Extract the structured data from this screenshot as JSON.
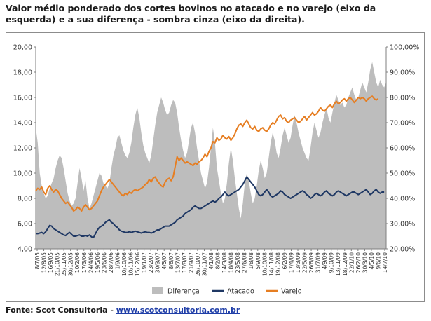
{
  "title": "Valor médio ponderado dos cortes bovinos no atacado e no varejo (eixo da esquerda) e a sua diferença - sombra cinza (eixo da direita).",
  "source": {
    "prefix": "Fonte: Scot Consultoria - ",
    "link_text": "www.scotconsultoria.com.br"
  },
  "chart_data": {
    "type": "line",
    "y_left": {
      "min": 4,
      "max": 20,
      "step": 2,
      "tick_labels": [
        "4,00",
        "6,00",
        "8,00",
        "10,00",
        "12,00",
        "14,00",
        "16,00",
        "18,00",
        "20,00"
      ]
    },
    "y_right": {
      "min": 20,
      "max": 100,
      "step": 10,
      "tick_labels": [
        "20,00%",
        "30,00%",
        "40,00%",
        "50,00%",
        "60,00%",
        "70,00%",
        "80,00%",
        "90,00%",
        "100,00%"
      ]
    },
    "x_tick_labels": [
      "8/7/05",
      "12/8/05",
      "16/9/05",
      "21/10/05",
      "25/11/05",
      "30/12/05",
      "10/2/06",
      "17/3/06",
      "24/4/06",
      "19/5/06",
      "23/6/06",
      "28/7/06",
      "1/9/06",
      "10/10/06",
      "10/11/06",
      "15/12/06",
      "19/1/07",
      "23/2/07",
      "30/3/07",
      "4/5/07",
      "8/6/07",
      "13/7/07",
      "17/8/07",
      "21/9/07",
      "26/10/07",
      "30/11/07",
      "4/1/08",
      "8/2/08",
      "14/3/08",
      "18/4/08",
      "23/5/08",
      "27/6/08",
      "1/8/08",
      "5/9/08",
      "10/10/08",
      "14/11/08",
      "19/12/08",
      "6/2/09",
      "17/4/09",
      "13/3/09",
      "22/5/09",
      "26/6/09",
      "31/7/09",
      "4/9/09",
      "9/10/09",
      "13/11/09",
      "18/12/09",
      "22/1/10",
      "26/2/10",
      "30/3/10",
      "4/5/10",
      "9/6/10",
      "14/7/10"
    ],
    "legend": {
      "position": "bottom-center"
    },
    "grid": false,
    "colors": {
      "diferenca": "#bdbdbd",
      "atacado": "#1f3864",
      "varejo": "#e67e22"
    },
    "series": [
      {
        "name": "Diferença",
        "axis": "right",
        "kind": "area",
        "values": [
          68,
          62,
          50,
          45,
          42,
          40,
          41,
          44,
          46,
          48,
          52,
          55,
          57,
          56,
          52,
          47,
          42,
          39,
          37,
          38,
          40,
          46,
          52,
          48,
          43,
          47,
          40,
          36,
          38,
          41,
          44,
          47,
          50,
          49,
          46,
          45,
          44,
          46,
          52,
          57,
          60,
          64,
          65,
          62,
          59,
          57,
          56,
          58,
          62,
          68,
          73,
          76,
          72,
          66,
          61,
          58,
          56,
          54,
          57,
          63,
          69,
          74,
          77,
          80,
          78,
          75,
          73,
          74,
          77,
          79,
          78,
          74,
          68,
          63,
          59,
          56,
          58,
          63,
          68,
          70,
          66,
          60,
          55,
          50,
          47,
          44,
          46,
          52,
          60,
          68,
          62,
          52,
          47,
          42,
          38,
          40,
          46,
          54,
          60,
          55,
          48,
          42,
          36,
          32,
          38,
          46,
          50,
          47,
          42,
          38,
          40,
          45,
          51,
          55,
          52,
          48,
          50,
          56,
          62,
          66,
          63,
          58,
          56,
          60,
          65,
          68,
          65,
          62,
          64,
          69,
          73,
          70,
          66,
          63,
          60,
          58,
          56,
          55,
          60,
          66,
          70,
          67,
          64,
          66,
          70,
          73,
          76,
          72,
          70,
          74,
          78,
          81,
          79,
          77,
          78,
          76,
          77,
          80,
          82,
          84,
          81,
          79,
          80,
          83,
          86,
          84,
          82,
          86,
          91,
          94,
          90,
          86,
          84,
          87,
          85,
          84,
          86
        ]
      },
      {
        "name": "Atacado",
        "axis": "left",
        "values": [
          5.2,
          5.2,
          5.25,
          5.3,
          5.2,
          5.35,
          5.6,
          5.85,
          5.8,
          5.6,
          5.5,
          5.4,
          5.3,
          5.2,
          5.1,
          5.05,
          5.2,
          5.3,
          5.15,
          5.0,
          5.0,
          5.05,
          5.1,
          5.0,
          5.0,
          5.05,
          5.0,
          5.1,
          4.95,
          4.9,
          5.2,
          5.5,
          5.7,
          5.8,
          5.9,
          6.1,
          6.2,
          6.3,
          6.1,
          6.0,
          5.8,
          5.7,
          5.5,
          5.4,
          5.35,
          5.3,
          5.3,
          5.35,
          5.3,
          5.35,
          5.4,
          5.35,
          5.3,
          5.25,
          5.3,
          5.35,
          5.3,
          5.3,
          5.25,
          5.3,
          5.4,
          5.5,
          5.5,
          5.6,
          5.7,
          5.8,
          5.8,
          5.8,
          5.9,
          6.0,
          6.1,
          6.3,
          6.4,
          6.5,
          6.6,
          6.8,
          6.9,
          7.0,
          7.1,
          7.3,
          7.4,
          7.3,
          7.2,
          7.2,
          7.3,
          7.4,
          7.5,
          7.6,
          7.7,
          7.8,
          7.7,
          7.8,
          8.0,
          8.1,
          8.3,
          8.5,
          8.3,
          8.2,
          8.3,
          8.4,
          8.5,
          8.6,
          8.7,
          8.9,
          9.1,
          9.4,
          9.7,
          9.5,
          9.3,
          9.1,
          8.9,
          8.6,
          8.3,
          8.2,
          8.3,
          8.5,
          8.7,
          8.5,
          8.2,
          8.1,
          8.2,
          8.3,
          8.4,
          8.6,
          8.5,
          8.3,
          8.2,
          8.1,
          8.0,
          8.1,
          8.2,
          8.3,
          8.4,
          8.5,
          8.6,
          8.5,
          8.3,
          8.2,
          8.0,
          8.1,
          8.3,
          8.4,
          8.3,
          8.2,
          8.3,
          8.5,
          8.6,
          8.4,
          8.3,
          8.2,
          8.3,
          8.5,
          8.6,
          8.5,
          8.4,
          8.3,
          8.2,
          8.3,
          8.4,
          8.5,
          8.5,
          8.4,
          8.3,
          8.4,
          8.5,
          8.6,
          8.7,
          8.5,
          8.3,
          8.4,
          8.6,
          8.7,
          8.5,
          8.4,
          8.5,
          8.5
        ]
      },
      {
        "name": "Varejo",
        "axis": "left",
        "values": [
          8.6,
          8.8,
          8.7,
          8.9,
          8.5,
          8.3,
          8.8,
          9.0,
          8.7,
          8.5,
          8.7,
          8.6,
          8.3,
          8.0,
          7.8,
          7.6,
          7.7,
          7.5,
          7.3,
          7.0,
          7.1,
          7.3,
          7.2,
          7.0,
          7.3,
          7.5,
          7.3,
          7.1,
          7.2,
          7.4,
          7.6,
          7.8,
          8.2,
          8.6,
          8.9,
          9.1,
          9.3,
          9.5,
          9.3,
          9.1,
          8.9,
          8.7,
          8.5,
          8.3,
          8.2,
          8.4,
          8.3,
          8.5,
          8.4,
          8.6,
          8.7,
          8.6,
          8.7,
          8.8,
          8.9,
          9.1,
          9.2,
          9.5,
          9.3,
          9.6,
          9.7,
          9.4,
          9.2,
          9.0,
          8.9,
          9.3,
          9.5,
          9.6,
          9.4,
          9.7,
          10.5,
          11.3,
          11.0,
          11.2,
          11.0,
          10.8,
          10.9,
          10.8,
          10.7,
          10.6,
          10.8,
          10.7,
          10.9,
          11.0,
          11.2,
          11.5,
          11.3,
          11.7,
          12.0,
          12.5,
          12.4,
          12.8,
          12.6,
          12.7,
          13.0,
          12.8,
          12.7,
          12.9,
          12.6,
          12.8,
          13.1,
          13.5,
          13.8,
          13.9,
          13.7,
          14.0,
          14.2,
          13.9,
          13.6,
          13.5,
          13.7,
          13.4,
          13.3,
          13.5,
          13.6,
          13.4,
          13.3,
          13.5,
          13.8,
          14.0,
          13.9,
          14.2,
          14.5,
          14.6,
          14.3,
          14.4,
          14.1,
          14.0,
          14.2,
          14.3,
          14.4,
          14.2,
          14.0,
          14.1,
          14.3,
          14.5,
          14.2,
          14.4,
          14.6,
          14.8,
          14.6,
          14.7,
          14.9,
          15.2,
          15.0,
          14.9,
          15.1,
          15.3,
          15.4,
          15.2,
          15.5,
          15.7,
          15.5,
          15.6,
          15.8,
          15.9,
          15.7,
          15.9,
          16.0,
          15.8,
          15.6,
          15.8,
          16.0,
          15.9,
          16.0,
          15.9,
          15.7,
          15.9,
          16.0,
          16.1,
          15.9,
          15.8,
          15.9
        ]
      }
    ]
  }
}
